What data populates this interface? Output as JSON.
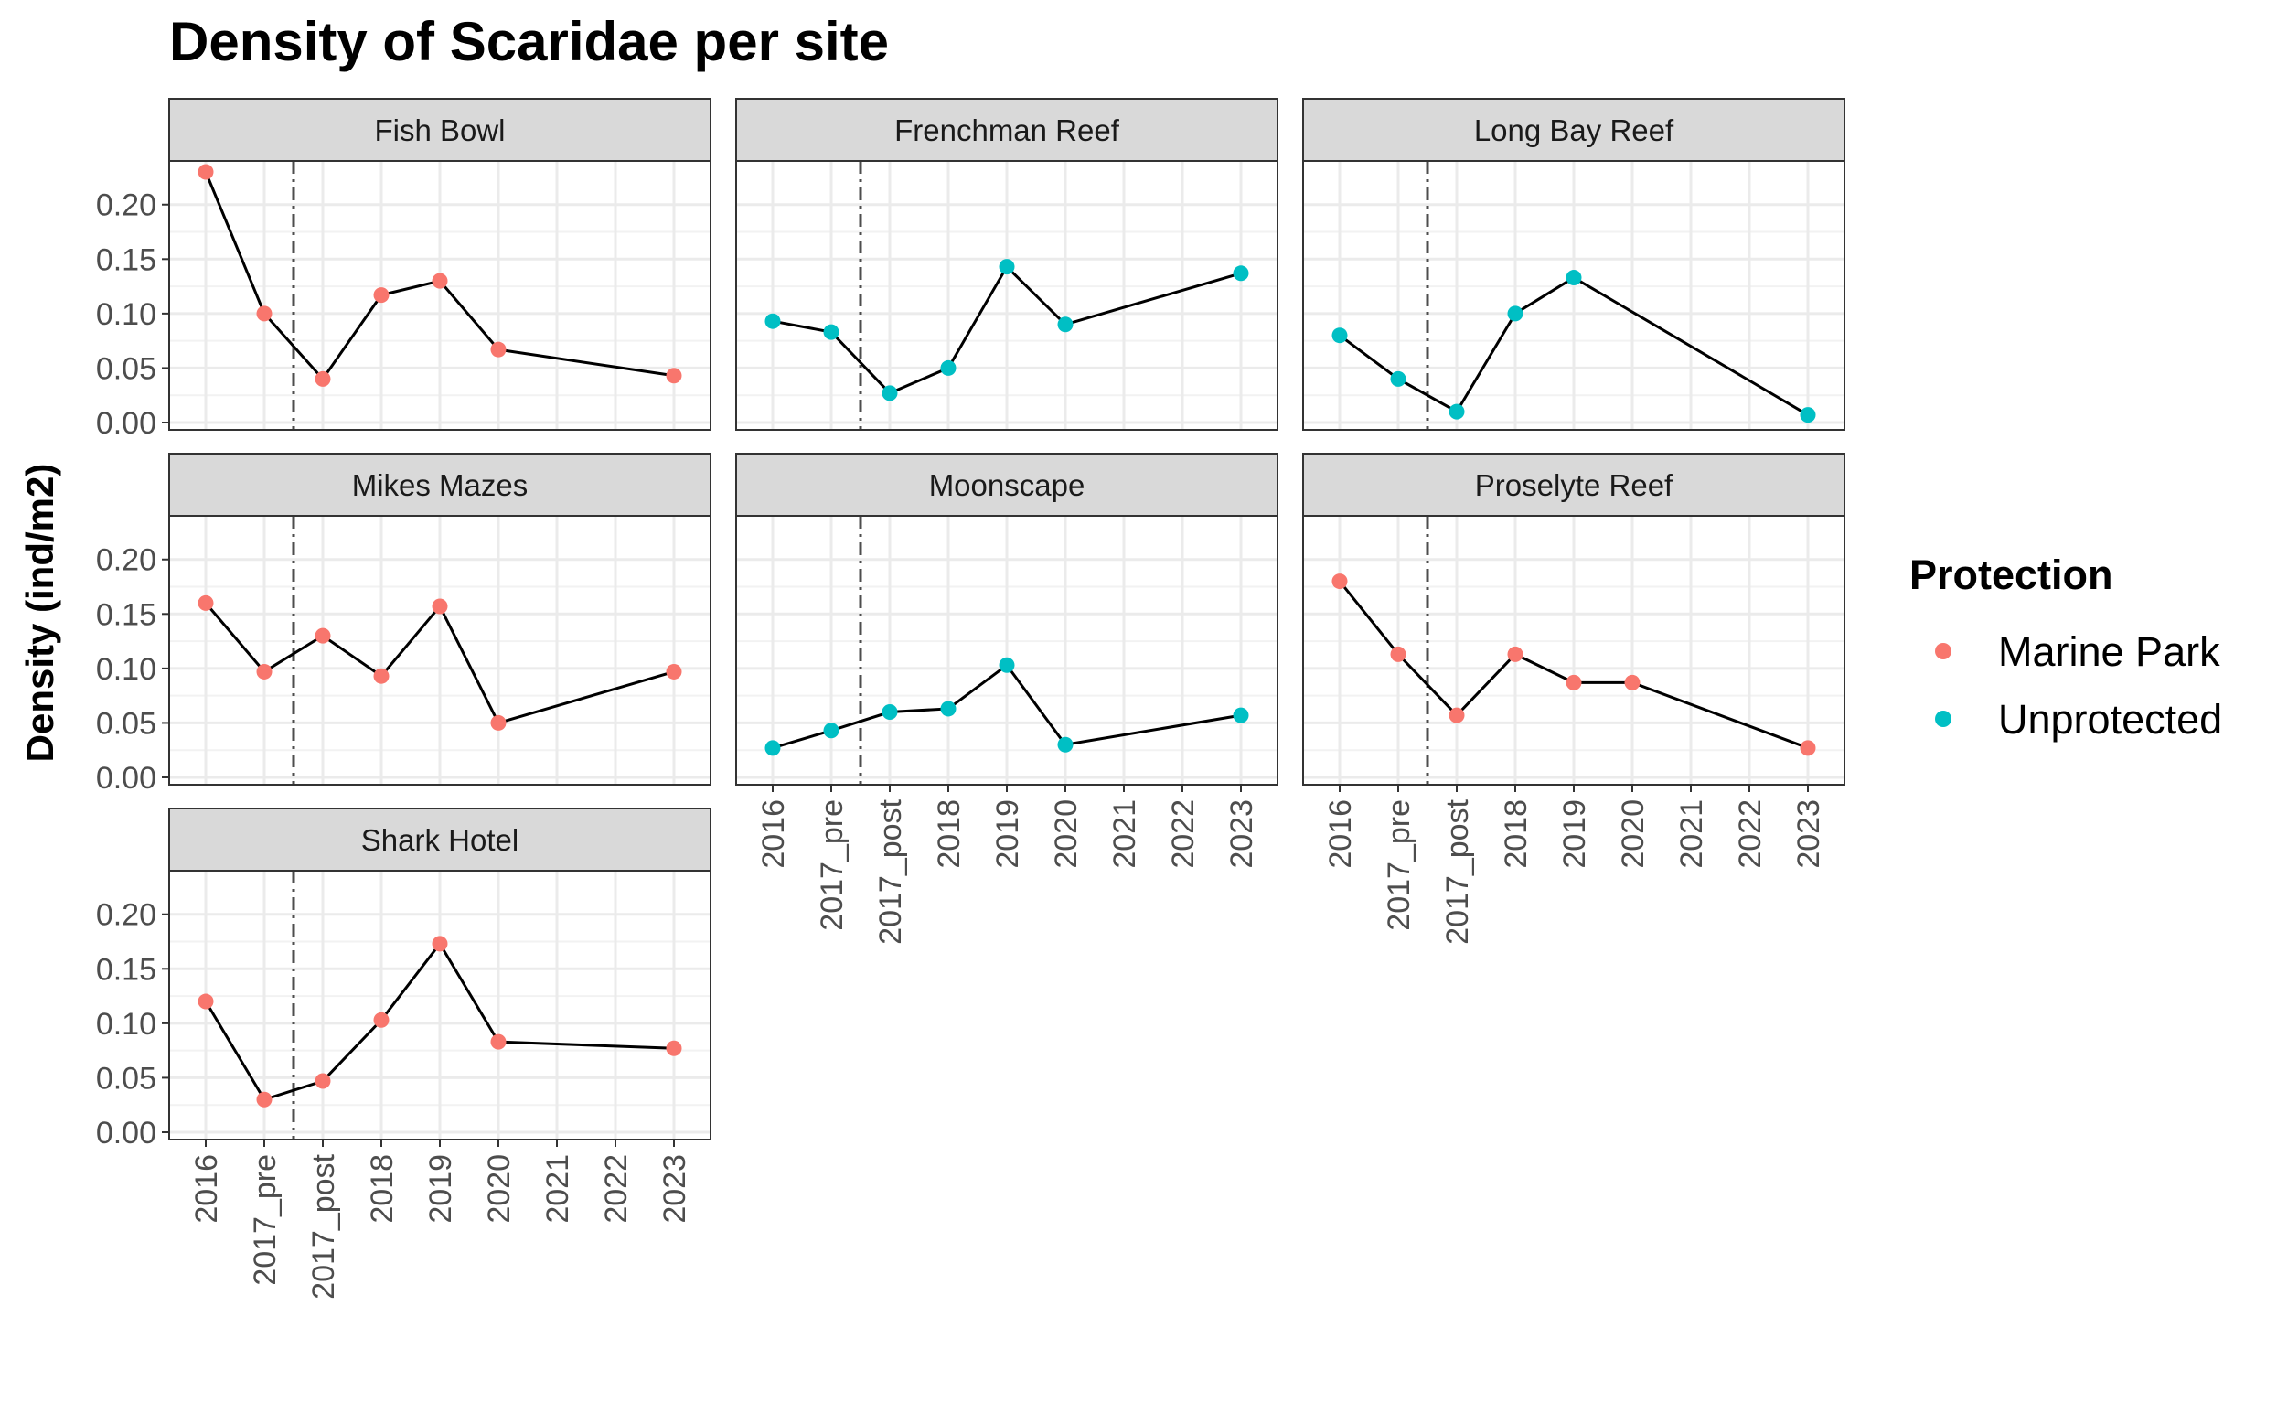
{
  "chart_data": {
    "type": "line",
    "title": "Density of Scaridae per site",
    "xlabel": "",
    "ylabel": "Density (ind/m2)",
    "categories": [
      "2016",
      "2017_pre",
      "2017_post",
      "2018",
      "2019",
      "2020",
      "2021",
      "2022",
      "2023"
    ],
    "y_ticks": [
      "0.00",
      "0.05",
      "0.10",
      "0.15",
      "0.20"
    ],
    "ylim": [
      0,
      0.23
    ],
    "vline_between": [
      "2017_pre",
      "2017_post"
    ],
    "grid": true,
    "legend": {
      "title": "Protection",
      "position": "right",
      "entries": [
        {
          "label": "Marine Park",
          "color": "#F8766D"
        },
        {
          "label": "Unprotected",
          "color": "#00BFC4"
        }
      ]
    },
    "panels": [
      {
        "site": "Fish Bowl",
        "protection": "Marine Park",
        "x": [
          "2016",
          "2017_pre",
          "2017_post",
          "2018",
          "2019",
          "2020",
          "2023"
        ],
        "values": [
          0.23,
          0.1,
          0.04,
          0.117,
          0.13,
          0.067,
          0.043
        ]
      },
      {
        "site": "Frenchman Reef",
        "protection": "Unprotected",
        "x": [
          "2016",
          "2017_pre",
          "2017_post",
          "2018",
          "2019",
          "2020",
          "2023"
        ],
        "values": [
          0.093,
          0.083,
          0.027,
          0.05,
          0.143,
          0.09,
          0.137
        ]
      },
      {
        "site": "Long Bay Reef",
        "protection": "Unprotected",
        "x": [
          "2016",
          "2017_pre",
          "2017_post",
          "2018",
          "2019",
          "2023"
        ],
        "values": [
          0.08,
          0.04,
          0.01,
          0.1,
          0.133,
          0.007
        ]
      },
      {
        "site": "Mikes Mazes",
        "protection": "Marine Park",
        "x": [
          "2016",
          "2017_pre",
          "2017_post",
          "2018",
          "2019",
          "2020",
          "2023"
        ],
        "values": [
          0.16,
          0.097,
          0.13,
          0.093,
          0.157,
          0.05,
          0.097
        ]
      },
      {
        "site": "Moonscape",
        "protection": "Unprotected",
        "x": [
          "2016",
          "2017_pre",
          "2017_post",
          "2018",
          "2019",
          "2020",
          "2023"
        ],
        "values": [
          0.027,
          0.043,
          0.06,
          0.063,
          0.103,
          0.03,
          0.057
        ]
      },
      {
        "site": "Proselyte Reef",
        "protection": "Marine Park",
        "x": [
          "2016",
          "2017_pre",
          "2017_post",
          "2018",
          "2019",
          "2020",
          "2023"
        ],
        "values": [
          0.18,
          0.113,
          0.057,
          0.113,
          0.087,
          0.087,
          0.027
        ]
      },
      {
        "site": "Shark Hotel",
        "protection": "Marine Park",
        "x": [
          "2016",
          "2017_pre",
          "2017_post",
          "2018",
          "2019",
          "2020",
          "2023"
        ],
        "values": [
          0.12,
          0.03,
          0.047,
          0.103,
          0.173,
          0.083,
          0.077
        ]
      }
    ]
  }
}
